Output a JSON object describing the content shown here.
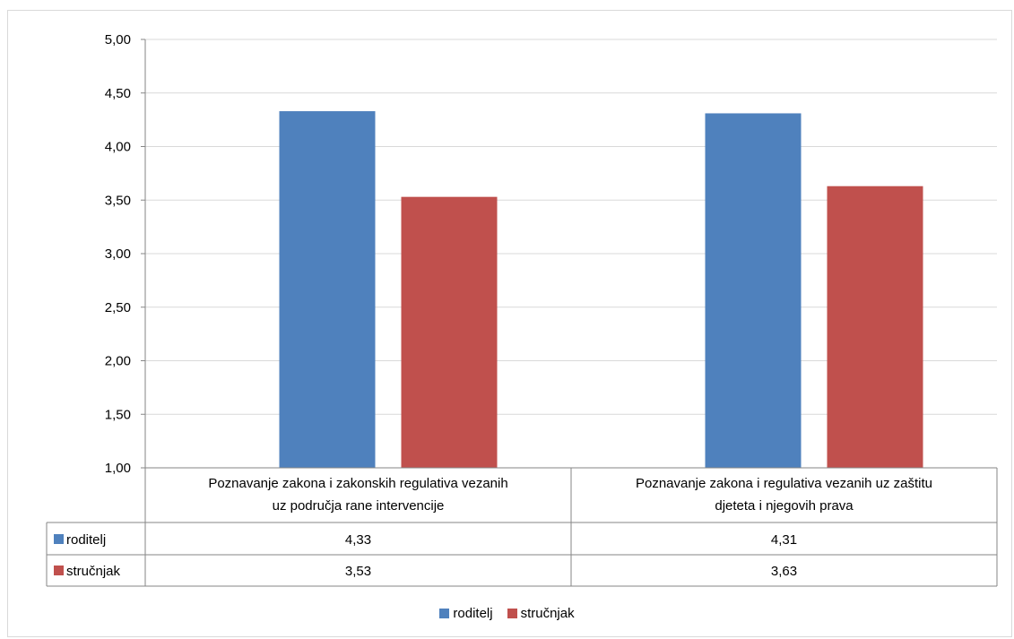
{
  "chart_data": {
    "type": "bar",
    "categories": [
      "Poznavanje zakona i zakonskih regulativa vezanih uz područja rane intervencije",
      "Poznavanje zakona i regulativa vezanih uz zaštitu djeteta i njegovih prava"
    ],
    "category_lines": [
      [
        "Poznavanje zakona i zakonskih regulativa vezanih",
        "uz područja rane intervencije"
      ],
      [
        "Poznavanje zakona i regulativa vezanih uz zaštitu",
        "djeteta i njegovih prava"
      ]
    ],
    "series": [
      {
        "name": "roditelj",
        "values": [
          4.33,
          4.31
        ],
        "labels": [
          "4,33",
          "4,31"
        ],
        "color": "#4f81bd"
      },
      {
        "name": "stručnjak",
        "values": [
          3.53,
          3.63
        ],
        "labels": [
          "3,53",
          "3,63"
        ],
        "color": "#c0504d"
      }
    ],
    "ylim": [
      1.0,
      5.0
    ],
    "yticks": [
      "1,00",
      "1,50",
      "2,00",
      "2,50",
      "3,00",
      "3,50",
      "4,00",
      "4,50",
      "5,00"
    ],
    "grid": true,
    "data_table": true,
    "legend_position": "bottom"
  },
  "legend": {
    "items": [
      {
        "label": "roditelj",
        "color": "#4f81bd"
      },
      {
        "label": "stručnjak",
        "color": "#c0504d"
      }
    ]
  }
}
